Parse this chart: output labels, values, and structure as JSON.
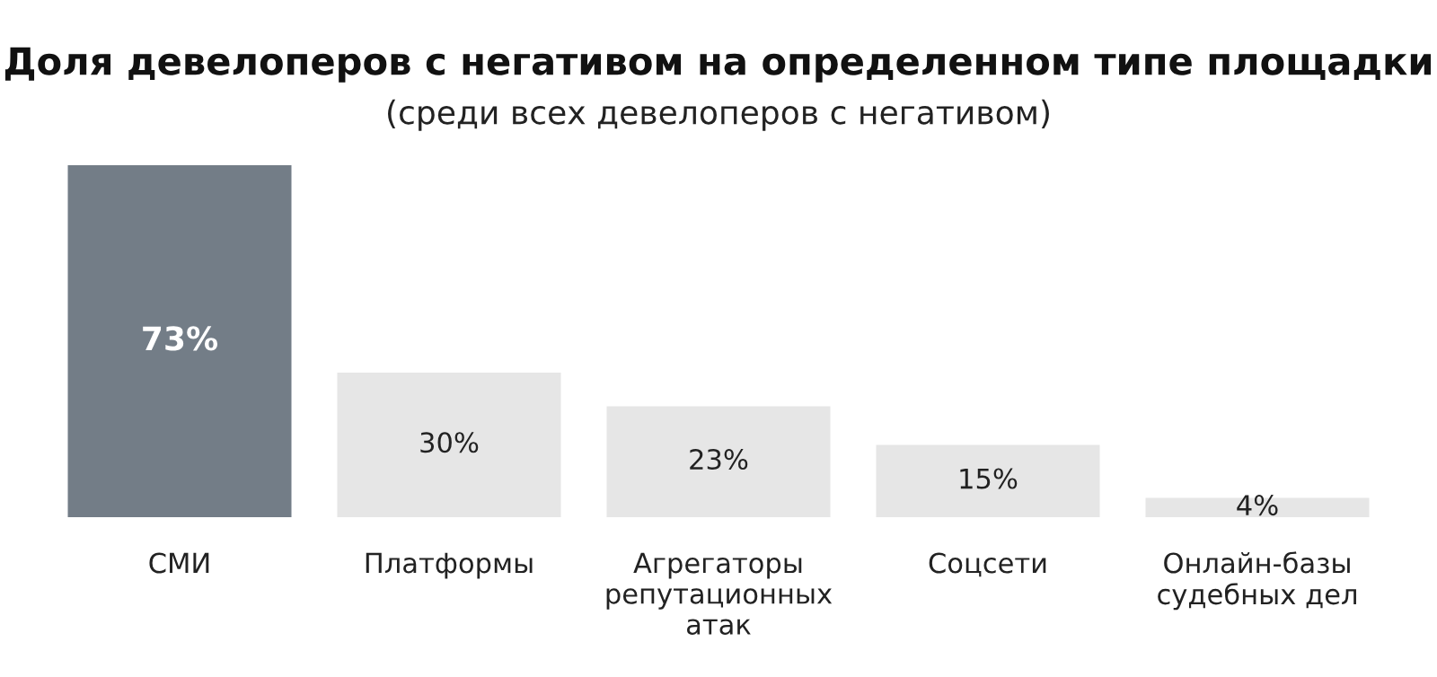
{
  "chart_data": {
    "type": "bar",
    "title": "Доля девелоперов с негативом на определенном типе площадки",
    "subtitle": "(среди всех девелоперов с негативом)",
    "categories": [
      "СМИ",
      "Платформы",
      "Агрегаторы репутационных атак",
      "Соцсети",
      "Онлайн-базы судебных дел"
    ],
    "values": [
      73,
      30,
      23,
      15,
      4
    ],
    "value_labels": [
      "73%",
      "30%",
      "23%",
      "15%",
      "4%"
    ],
    "colors": [
      "#737d87",
      "#e6e6e6",
      "#e6e6e6",
      "#e6e6e6",
      "#e6e6e6"
    ],
    "tick_labels": "x",
    "grid": false,
    "legend": false
  }
}
